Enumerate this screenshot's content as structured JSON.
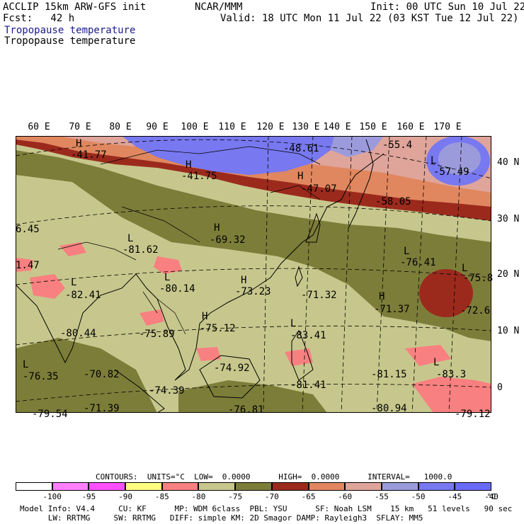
{
  "header": {
    "model": "ACCLIP 15km ARW-GFS init",
    "org": "NCAR/MMM",
    "init": "Init: 00 UTC Sun 10 Jul 22",
    "fcst": "Fcst:   42 h",
    "valid": "Valid: 18 UTC Mon 11 Jul 22 (03 KST Tue 12 Jul 22)",
    "field_title_1": "Tropopause temperature",
    "field_title_2": "Tropopause temperature"
  },
  "axes": {
    "lon_labels": [
      "60 E",
      "70 E",
      "80 E",
      "90 E",
      "100 E",
      "110 E",
      "120 E",
      "130 E",
      "140 E",
      "150 E",
      "160 E",
      "170 E"
    ],
    "lat_labels": [
      "40 N",
      "30 N",
      "20 N",
      "10 N",
      "0"
    ]
  },
  "map_labels": [
    {
      "id": "h1",
      "text": "H"
    },
    {
      "id": "v1",
      "text": "-41.77"
    },
    {
      "id": "h2",
      "text": "H"
    },
    {
      "id": "v2",
      "text": "-41.75"
    },
    {
      "id": "v3",
      "text": "-48.61"
    },
    {
      "id": "v4",
      "text": "-55.4"
    },
    {
      "id": "l1",
      "text": "L"
    },
    {
      "id": "v5",
      "text": "-57.49"
    },
    {
      "id": "h3",
      "text": "H"
    },
    {
      "id": "v6",
      "text": "-47.07"
    },
    {
      "id": "v7",
      "text": "-58.05"
    },
    {
      "id": "v8",
      "text": "6.45"
    },
    {
      "id": "l2",
      "text": "L"
    },
    {
      "id": "v9",
      "text": "-81.62"
    },
    {
      "id": "h4",
      "text": "H"
    },
    {
      "id": "v10",
      "text": "-69.32"
    },
    {
      "id": "v11",
      "text": "1.47"
    },
    {
      "id": "l3",
      "text": "L"
    },
    {
      "id": "v12",
      "text": "-82.41"
    },
    {
      "id": "l4",
      "text": "L"
    },
    {
      "id": "v13",
      "text": "-80.14"
    },
    {
      "id": "h5",
      "text": "H"
    },
    {
      "id": "v14",
      "text": "-73.23"
    },
    {
      "id": "v15",
      "text": "-71.32"
    },
    {
      "id": "l5",
      "text": "L"
    },
    {
      "id": "v16",
      "text": "-76.41"
    },
    {
      "id": "l6",
      "text": "L"
    },
    {
      "id": "v17",
      "text": "-75.8"
    },
    {
      "id": "h6",
      "text": "H"
    },
    {
      "id": "v18",
      "text": "-71.37"
    },
    {
      "id": "v19",
      "text": "-72.6"
    },
    {
      "id": "v20",
      "text": "-80.44"
    },
    {
      "id": "v21",
      "text": "-75.89"
    },
    {
      "id": "h7",
      "text": "H"
    },
    {
      "id": "v22",
      "text": "-75.12"
    },
    {
      "id": "l7",
      "text": "L"
    },
    {
      "id": "v23",
      "text": "-83.41"
    },
    {
      "id": "l8",
      "text": "L"
    },
    {
      "id": "v24",
      "text": "-76.35"
    },
    {
      "id": "v25",
      "text": "-70.82"
    },
    {
      "id": "v26",
      "text": "-74.92"
    },
    {
      "id": "v27",
      "text": "-81.15"
    },
    {
      "id": "l9",
      "text": "L"
    },
    {
      "id": "v28",
      "text": "-83.3"
    },
    {
      "id": "v29",
      "text": "-74.39"
    },
    {
      "id": "v30",
      "text": "-81.41"
    },
    {
      "id": "v31",
      "text": "-79.54"
    },
    {
      "id": "v32",
      "text": "-71.39"
    },
    {
      "id": "v33",
      "text": "-76.81"
    },
    {
      "id": "v34",
      "text": "-80.94"
    },
    {
      "id": "v35",
      "text": "-79.12"
    }
  ],
  "legend": {
    "contours": "CONTOURS:  UNITS=°C  LOW=  0.0000      HIGH=  0.0000      INTERVAL=   1000.0",
    "bins": [
      {
        "color": "#ffffff"
      },
      {
        "color": "#ff80ff"
      },
      {
        "color": "#ff50ff"
      },
      {
        "color": "#ffff80"
      },
      {
        "color": "#f88080"
      },
      {
        "color": "#c7c78d"
      },
      {
        "color": "#7d7d3a"
      },
      {
        "color": "#9b2a1d"
      },
      {
        "color": "#e0875f"
      },
      {
        "color": "#dfa49a"
      },
      {
        "color": "#9b9bdc"
      },
      {
        "color": "#7878f0"
      },
      {
        "color": "#6a6af8"
      }
    ],
    "ticks": [
      "-100",
      "-95",
      "-90",
      "-85",
      "-80",
      "-75",
      "-70",
      "-65",
      "-60",
      "-55",
      "-50",
      "-45",
      "-40",
      "°C"
    ]
  },
  "footer": {
    "line1": "Model Info: V4.4     CU: KF      MP: WDM 6class  PBL: YSU      SF: Noah LSM    15 km   51 levels   90 sec",
    "line2": "      LW: RRTMG     SW: RRTMG   DIFF: simple KM: 2D Smagor DAMP: Rayleigh3  SFLAY: MM5"
  }
}
